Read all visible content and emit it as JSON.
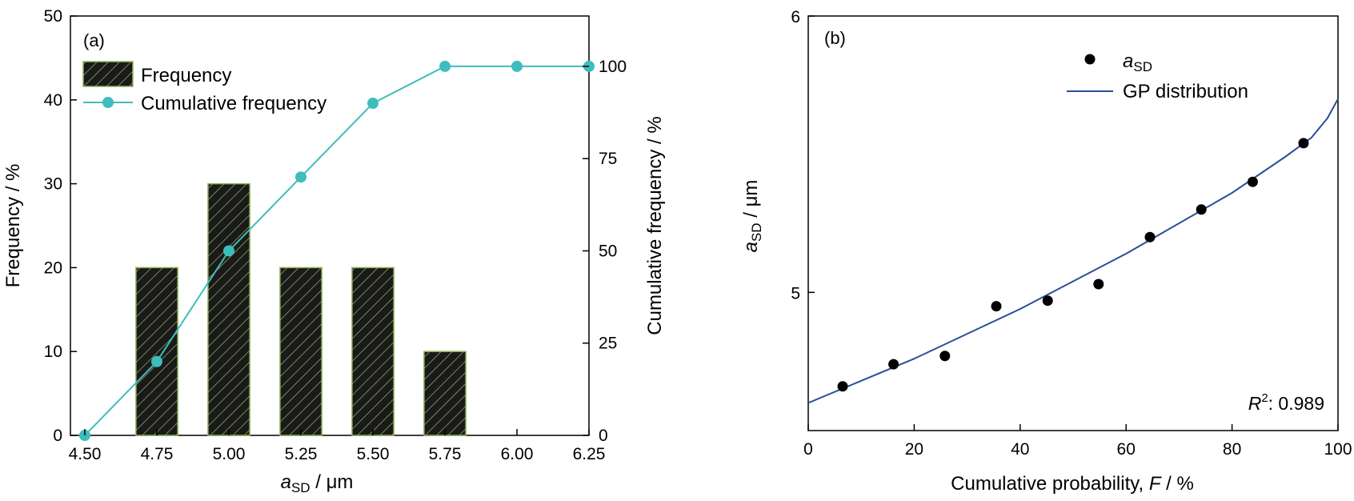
{
  "chart_data": [
    {
      "panel_label": "(a)",
      "type": "bar",
      "xlabel_main": "a",
      "xlabel_sub": "SD",
      "xlabel_unit": " / μm",
      "ylabel": "Frequency / %",
      "y2label": "Cumulative frequency / %",
      "xlim": [
        4.45,
        6.25
      ],
      "ylim": [
        0,
        50
      ],
      "y2lim": [
        0,
        113.64
      ],
      "xticks": [
        "4.50",
        "4.75",
        "5.00",
        "5.25",
        "5.50",
        "5.75",
        "6.00",
        "6.25"
      ],
      "xtick_values": [
        4.5,
        4.75,
        5.0,
        5.25,
        5.5,
        5.75,
        6.0,
        6.25
      ],
      "yticks": [
        "0",
        "10",
        "20",
        "30",
        "40",
        "50"
      ],
      "ytick_values": [
        0,
        10,
        20,
        30,
        40,
        50
      ],
      "y2ticks": [
        "0",
        "25",
        "50",
        "75",
        "100"
      ],
      "y2tick_values": [
        0,
        25,
        50,
        75,
        100
      ],
      "legend": [
        "Frequency",
        "Cumulative frequency"
      ],
      "legend_position": "top-left",
      "bar_fill": "#1a1a1a",
      "bar_edge": "#8fb35a",
      "line_color": "#3fbcbc",
      "bars": {
        "name": "Frequency",
        "x": [
          4.75,
          5.0,
          5.25,
          5.5,
          5.75
        ],
        "values": [
          20,
          30,
          20,
          20,
          10
        ]
      },
      "cumulative": {
        "name": "Cumulative frequency",
        "x": [
          4.5,
          4.75,
          5.0,
          5.25,
          5.5,
          5.75,
          6.0,
          6.25
        ],
        "values": [
          0,
          20,
          50,
          70,
          90,
          100,
          100,
          100
        ]
      }
    },
    {
      "panel_label": "(b)",
      "type": "scatter",
      "xlabel_main": "Cumulative probability, ",
      "xlabel_var": "F",
      "xlabel_unit": " / %",
      "ylabel_main": "a",
      "ylabel_sub": "SD",
      "ylabel_unit": " / μm",
      "xlim": [
        0,
        100
      ],
      "ylim": [
        4.5,
        6
      ],
      "xticks": [
        "0",
        "20",
        "40",
        "60",
        "80",
        "100"
      ],
      "xtick_values": [
        0,
        20,
        40,
        60,
        80,
        100
      ],
      "yticks": [
        "5",
        "6"
      ],
      "ytick_values": [
        5,
        6
      ],
      "legend_points_main": "a",
      "legend_points_sub": "SD",
      "legend_line": "GP distribution",
      "legend_position": "top-right",
      "annotation_var": "R",
      "annotation_sup": "2",
      "annotation_value": ": 0.989",
      "point_color": "#000000",
      "line_color": "#2b4f96",
      "points": {
        "x": [
          6.5,
          16.1,
          25.8,
          35.5,
          45.2,
          54.8,
          64.5,
          74.2,
          83.9,
          93.5
        ],
        "values": [
          4.66,
          4.74,
          4.77,
          4.95,
          4.97,
          5.03,
          5.2,
          5.3,
          5.4,
          5.54
        ]
      },
      "fit_curve": {
        "x": [
          0,
          10,
          20,
          30,
          40,
          50,
          60,
          70,
          80,
          90,
          95,
          98,
          100
        ],
        "values": [
          4.6,
          4.68,
          4.76,
          4.85,
          4.94,
          5.04,
          5.14,
          5.25,
          5.36,
          5.49,
          5.56,
          5.63,
          5.7
        ]
      }
    }
  ]
}
